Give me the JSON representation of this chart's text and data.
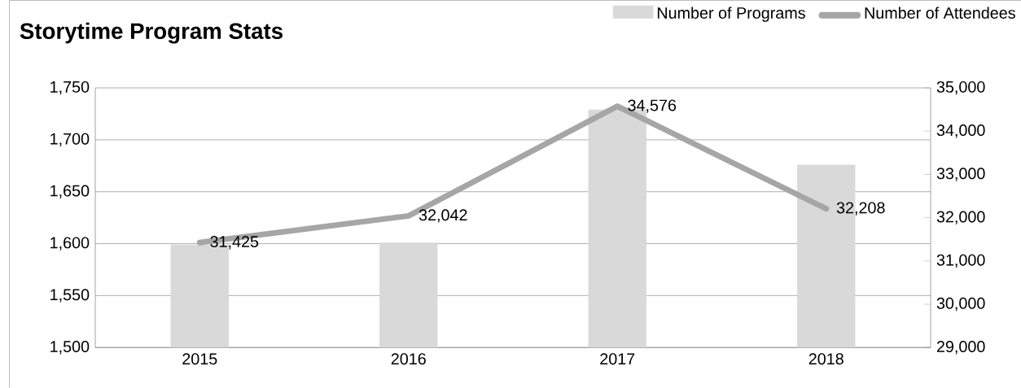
{
  "chart_data": {
    "type": "bar",
    "title": "Storytime Program Stats",
    "categories": [
      "2015",
      "2016",
      "2017",
      "2018"
    ],
    "series": [
      {
        "name": "Number of Programs",
        "color": "#d9d9d9",
        "values": [
          1599,
          1601,
          1729,
          1676
        ]
      },
      {
        "name": "Number of Attendees",
        "type": "line",
        "axis": "y2",
        "color": "#a6a6a6",
        "values": [
          31425,
          32042,
          34576,
          32208
        ],
        "value_labels": [
          "31,425",
          "32,042",
          "34,576",
          "32,208"
        ]
      }
    ],
    "ylim": [
      1500,
      1750
    ],
    "yticks": [
      {
        "value": 1500,
        "label": "1,500"
      },
      {
        "value": 1550,
        "label": "1,550"
      },
      {
        "value": 1600,
        "label": "1,600"
      },
      {
        "value": 1650,
        "label": "1,650"
      },
      {
        "value": 1700,
        "label": "1,700"
      },
      {
        "value": 1750,
        "label": "1,750"
      }
    ],
    "y2lim": [
      29000,
      35000
    ],
    "y2ticks": [
      {
        "value": 29000,
        "label": "29,000"
      },
      {
        "value": 30000,
        "label": "30,000"
      },
      {
        "value": 31000,
        "label": "31,000"
      },
      {
        "value": 32000,
        "label": "32,000"
      },
      {
        "value": 33000,
        "label": "33,000"
      },
      {
        "value": 34000,
        "label": "34,000"
      },
      {
        "value": 35000,
        "label": "35,000"
      }
    ],
    "grid": "y",
    "legend": "top right",
    "marker": "none",
    "line_style": "solid"
  }
}
